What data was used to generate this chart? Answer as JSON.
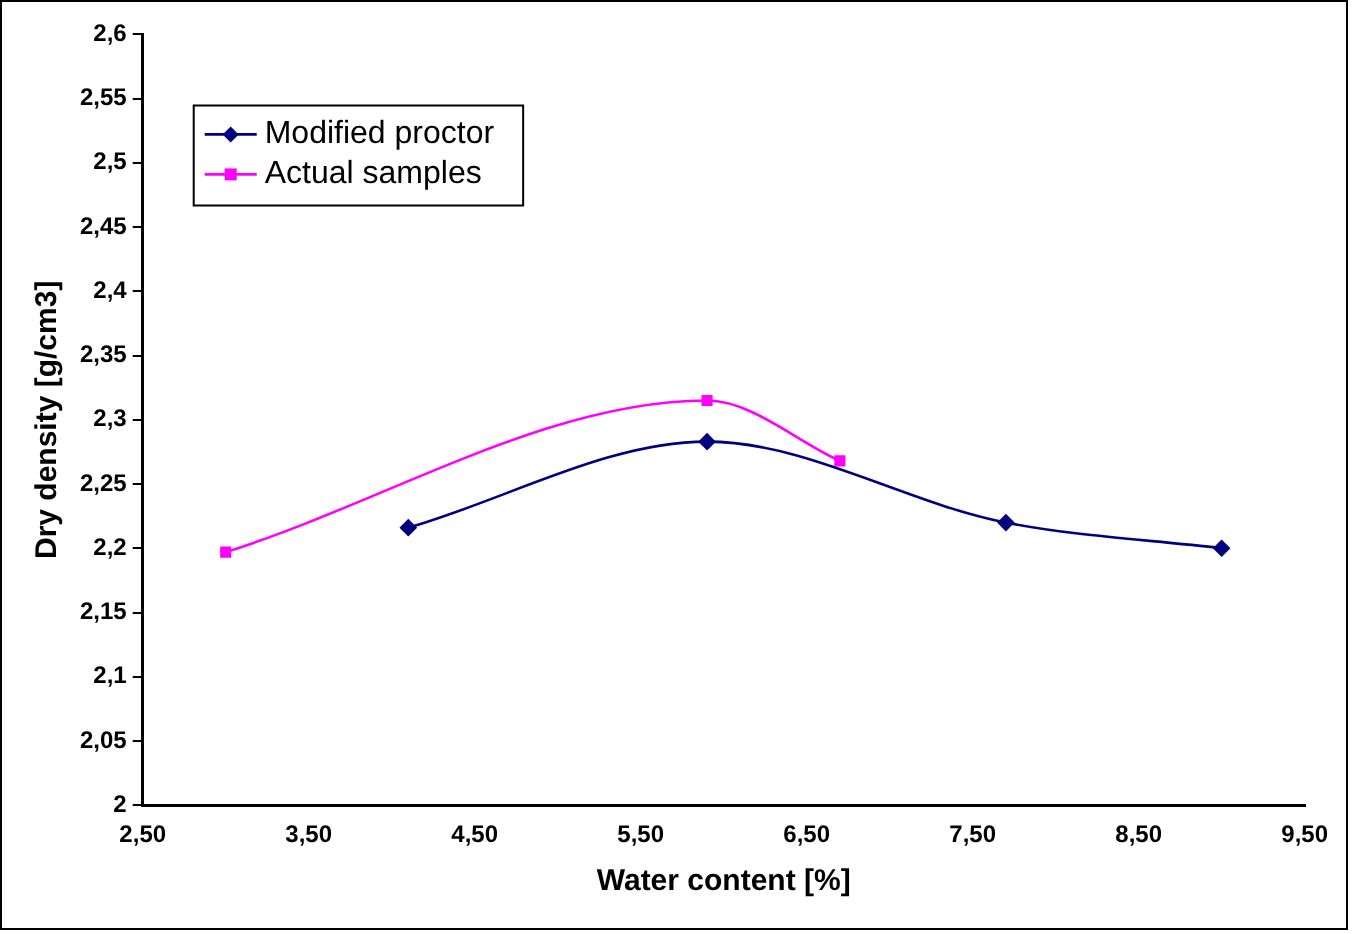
{
  "chart_data": {
    "type": "line",
    "xlabel": "Water content [%]",
    "ylabel": "Dry density [g/cm3]",
    "xlim": [
      2.5,
      9.5
    ],
    "xticks": [
      {
        "value": 2.5,
        "label": "2,50"
      },
      {
        "value": 3.5,
        "label": "3,50"
      },
      {
        "value": 4.5,
        "label": "4,50"
      },
      {
        "value": 5.5,
        "label": "5,50"
      },
      {
        "value": 6.5,
        "label": "6,50"
      },
      {
        "value": 7.5,
        "label": "7,50"
      },
      {
        "value": 8.5,
        "label": "8,50"
      },
      {
        "value": 9.5,
        "label": "9,50"
      }
    ],
    "ylim": [
      2,
      2.6
    ],
    "yticks": [
      2,
      {
        "value": 2.05,
        "label": "2,05"
      },
      {
        "value": 2.1,
        "label": "2,1"
      },
      {
        "value": 2.15,
        "label": "2,15"
      },
      {
        "value": 2.2,
        "label": "2,2"
      },
      {
        "value": 2.25,
        "label": "2,25"
      },
      {
        "value": 2.3,
        "label": "2,3"
      },
      {
        "value": 2.35,
        "label": "2,35"
      },
      {
        "value": 2.4,
        "label": "2,4"
      },
      {
        "value": 2.45,
        "label": "2,45"
      },
      {
        "value": 2.5,
        "label": "2,5"
      },
      {
        "value": 2.55,
        "label": "2,55"
      },
      {
        "value": 2.6,
        "label": "2,6"
      }
    ],
    "grid": false,
    "legend": "top left",
    "series": [
      {
        "name": "Modified proctor",
        "color": "#000080",
        "marker": "diamond",
        "x": [
          4.1,
          5.9,
          7.7,
          9.0
        ],
        "values": [
          2.216,
          2.283,
          2.22,
          2.2
        ]
      },
      {
        "name": "Actual samples",
        "color": "#ff00ff",
        "marker": "square",
        "x": [
          3.0,
          5.9,
          6.7
        ],
        "values": [
          2.197,
          2.315,
          2.268
        ]
      }
    ]
  }
}
